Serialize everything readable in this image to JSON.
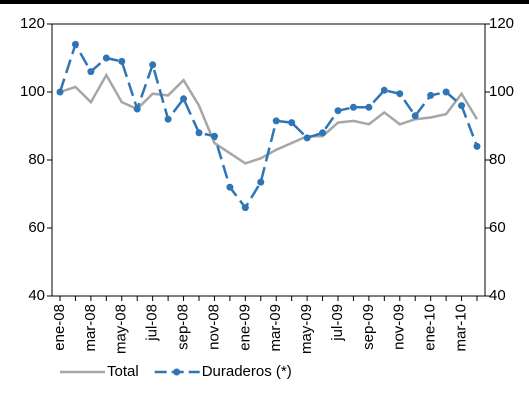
{
  "chart_data": {
    "type": "line",
    "categories": [
      "ene-08",
      null,
      "mar-08",
      null,
      "may-08",
      null,
      "jul-08",
      null,
      "sep-08",
      null,
      "nov-08",
      null,
      "ene-09",
      null,
      "mar-09",
      null,
      "may-09",
      null,
      "jul-09",
      null,
      "sep-09",
      null,
      "nov-09",
      null,
      "ene-10",
      null,
      "mar-10",
      null
    ],
    "series": [
      {
        "name": "Total",
        "color": "#a6a6a6",
        "dash": false,
        "markers": false,
        "values": [
          100,
          101.5,
          97,
          105,
          97,
          95,
          99.5,
          99,
          103.5,
          96,
          85,
          82,
          79,
          80.5,
          83,
          85,
          87,
          87,
          91,
          91.5,
          90.5,
          94,
          90.5,
          92,
          92.5,
          93.5,
          99.5,
          92
        ]
      },
      {
        "name": "Duraderos (*)",
        "color": "#2e75b6",
        "dash": true,
        "markers": true,
        "values": [
          100,
          114,
          106,
          110,
          109,
          95,
          108,
          92,
          98,
          88,
          87,
          72,
          66,
          73.5,
          91.5,
          91,
          86.5,
          88,
          94.5,
          95.5,
          95.5,
          100.5,
          99.5,
          93,
          99,
          100,
          96,
          84
        ]
      }
    ],
    "ylim": [
      40,
      120
    ],
    "yticks": [
      40,
      60,
      80,
      100,
      120
    ],
    "y2lim": [
      40,
      120
    ],
    "y2ticks": [
      40,
      60,
      80,
      100,
      120
    ],
    "grid": false,
    "legend": "bottom"
  }
}
